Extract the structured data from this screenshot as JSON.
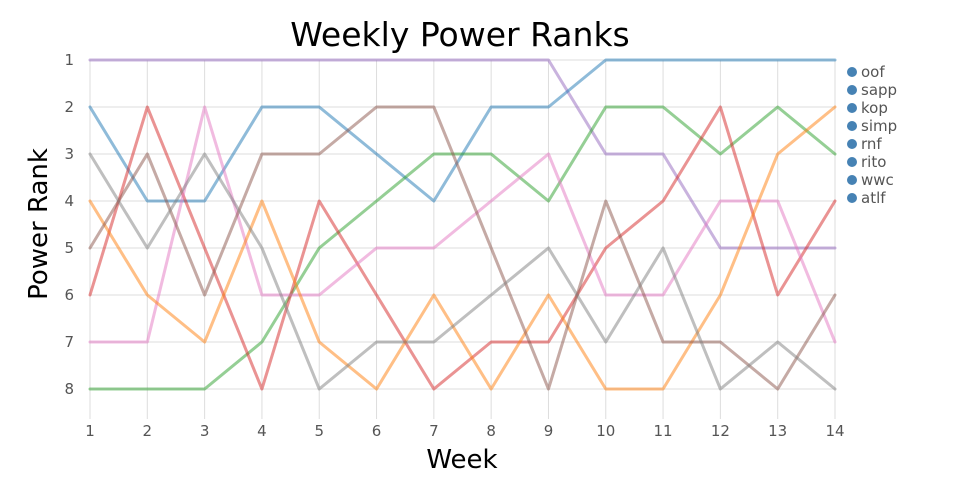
{
  "chart_data": {
    "type": "line",
    "title": "Weekly Power Ranks",
    "xlabel": "Week",
    "ylabel": "Power Rank",
    "x": [
      1,
      2,
      3,
      4,
      5,
      6,
      7,
      8,
      9,
      10,
      11,
      12,
      13,
      14
    ],
    "xlim": [
      1,
      14
    ],
    "ylim": [
      1,
      8
    ],
    "y_reversed": true,
    "y_ticks": [
      1,
      2,
      3,
      4,
      5,
      6,
      7,
      8
    ],
    "grid": true,
    "legend_position": "right",
    "legend": [
      "oof",
      "sapp",
      "kop",
      "simp",
      "rnf",
      "rito",
      "wwc",
      "atlf"
    ],
    "legend_marker_color": "#4682b4",
    "series": [
      {
        "color": "#9467bd",
        "values": [
          1,
          1,
          1,
          1,
          1,
          1,
          1,
          1,
          1,
          3,
          3,
          5,
          5,
          5
        ]
      },
      {
        "color": "#1f77b4",
        "values": [
          2,
          4,
          4,
          2,
          2,
          3,
          4,
          2,
          2,
          1,
          1,
          1,
          1,
          1
        ]
      },
      {
        "color": "#2ca02c",
        "values": [
          8,
          8,
          8,
          7,
          5,
          4,
          3,
          3,
          4,
          2,
          2,
          3,
          2,
          3
        ]
      },
      {
        "color": "#d62728",
        "values": [
          6,
          2,
          5,
          8,
          4,
          6,
          8,
          7,
          7,
          5,
          4,
          2,
          6,
          4
        ]
      },
      {
        "color": "#e377c2",
        "values": [
          7,
          7,
          2,
          6,
          6,
          5,
          5,
          4,
          3,
          6,
          6,
          4,
          4,
          7
        ]
      },
      {
        "color": "#ff7f0e",
        "values": [
          4,
          6,
          7,
          4,
          7,
          8,
          6,
          8,
          6,
          8,
          8,
          6,
          3,
          2
        ]
      },
      {
        "color": "#8c564b",
        "values": [
          5,
          3,
          6,
          3,
          3,
          2,
          2,
          5,
          8,
          4,
          7,
          7,
          8,
          6
        ]
      },
      {
        "color": "#7f7f7f",
        "values": [
          3,
          5,
          3,
          5,
          8,
          7,
          7,
          6,
          5,
          7,
          5,
          8,
          7,
          8
        ]
      }
    ]
  }
}
